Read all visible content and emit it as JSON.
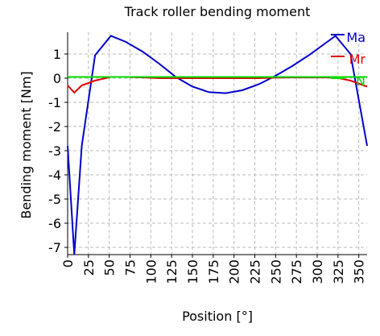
{
  "chart_data": {
    "type": "line",
    "title": "Track roller bending moment",
    "xlabel": "Position [°]",
    "ylabel": "Bending moment [Nm]",
    "x": [
      0,
      8,
      17,
      33,
      52,
      70,
      90,
      110,
      130,
      150,
      170,
      190,
      210,
      230,
      250,
      270,
      290,
      310,
      322,
      340,
      360
    ],
    "series": [
      {
        "name": "Ma",
        "color": "#0000cc",
        "values": [
          -2.8,
          -7.3,
          -2.8,
          0.95,
          1.75,
          1.5,
          1.1,
          0.6,
          0.05,
          -0.35,
          -0.58,
          -0.62,
          -0.5,
          -0.25,
          0.1,
          0.5,
          0.95,
          1.45,
          1.75,
          1.0,
          -2.8
        ]
      },
      {
        "name": "Mr",
        "color": "#e00000",
        "values": [
          -0.3,
          -0.6,
          -0.3,
          -0.1,
          0.05,
          0.05,
          0.03,
          0,
          0,
          0,
          0,
          0,
          0,
          0,
          0.02,
          0.03,
          0.03,
          0.03,
          0.03,
          -0.1,
          -0.35
        ]
      },
      {
        "name": "N",
        "color": "#00dd00",
        "values": [
          0.05,
          0.05,
          0.05,
          0.05,
          0.05,
          0.05,
          0.05,
          0.05,
          0.05,
          0.05,
          0.05,
          0.05,
          0.05,
          0.05,
          0.05,
          0.05,
          0.05,
          0.05,
          0.05,
          0.05,
          0.05
        ]
      }
    ],
    "xlim": [
      0,
      360
    ],
    "ylim": [
      -7.3,
      1.9
    ],
    "xticks": [
      0,
      25,
      50,
      75,
      100,
      125,
      150,
      175,
      200,
      225,
      250,
      275,
      300,
      325,
      350
    ],
    "yticks": [
      -7,
      -6,
      -5,
      -4,
      -3,
      -2,
      -1,
      0,
      1
    ],
    "grid": true,
    "legend": "upper right"
  }
}
